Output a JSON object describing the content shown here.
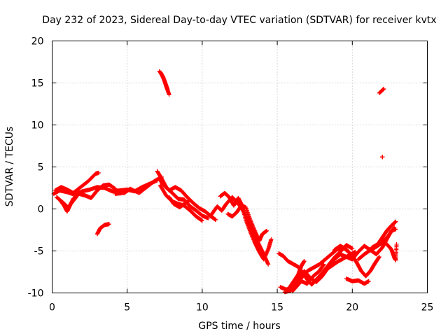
{
  "chart_data": {
    "type": "scatter",
    "title": "Day 232 of 2023, Sidereal Day-to-day VTEC variation (SDTVAR) for receiver kvtx",
    "xlabel": "GPS time / hours",
    "ylabel": "SDTVAR / TECUs",
    "xlim": [
      0,
      25
    ],
    "ylim": [
      -10,
      20
    ],
    "xticks": [
      0,
      5,
      10,
      15,
      20,
      25
    ],
    "yticks": [
      -10,
      -5,
      0,
      5,
      10,
      15,
      20
    ],
    "grid": true,
    "marker": "+",
    "color": "#ff0000",
    "series": [
      {
        "name": "tracks",
        "tracks": [
          [
            [
              0.1,
              1.8
            ],
            [
              0.5,
              2.2
            ],
            [
              1.0,
              2.0
            ],
            [
              1.5,
              1.7
            ],
            [
              2.0,
              2.1
            ],
            [
              2.5,
              2.3
            ],
            [
              3.0,
              2.6
            ],
            [
              3.5,
              2.5
            ],
            [
              4.0,
              2.1
            ],
            [
              4.5,
              2.2
            ],
            [
              5.0,
              2.3
            ],
            [
              5.5,
              2.1
            ],
            [
              6.0,
              2.6
            ],
            [
              6.5,
              3.0
            ],
            [
              7.0,
              3.4
            ]
          ],
          [
            [
              0.2,
              2.2
            ],
            [
              0.6,
              2.6
            ],
            [
              1.0,
              2.3
            ],
            [
              1.4,
              1.9
            ],
            [
              1.9,
              2.6
            ],
            [
              2.4,
              3.3
            ],
            [
              2.9,
              4.2
            ],
            [
              3.1,
              4.3
            ]
          ],
          [
            [
              0.3,
              1.4
            ],
            [
              0.7,
              0.8
            ],
            [
              1.1,
              0.1
            ],
            [
              1.4,
              1.2
            ],
            [
              1.8,
              1.8
            ],
            [
              2.2,
              1.6
            ],
            [
              2.6,
              1.3
            ],
            [
              3.0,
              2.2
            ],
            [
              3.4,
              2.8
            ],
            [
              3.8,
              2.9
            ],
            [
              4.2,
              2.4
            ]
          ],
          [
            [
              0.5,
              1.1
            ],
            [
              0.8,
              0.4
            ],
            [
              1.0,
              -0.3
            ],
            [
              1.2,
              0.5
            ],
            [
              1.6,
              1.4
            ]
          ],
          [
            [
              3.0,
              -3.0
            ],
            [
              3.2,
              -2.3
            ],
            [
              3.5,
              -1.9
            ],
            [
              3.8,
              -1.8
            ]
          ],
          [
            [
              4.2,
              1.8
            ],
            [
              4.8,
              1.9
            ],
            [
              5.2,
              2.4
            ],
            [
              5.8,
              1.9
            ],
            [
              6.3,
              2.6
            ],
            [
              6.8,
              3.3
            ],
            [
              7.3,
              3.8
            ]
          ],
          [
            [
              7.0,
              4.5
            ],
            [
              7.3,
              3.6
            ],
            [
              7.6,
              2.6
            ],
            [
              8.0,
              1.9
            ],
            [
              8.4,
              1.2
            ],
            [
              8.8,
              1.1
            ],
            [
              9.2,
              0.3
            ],
            [
              9.6,
              -0.2
            ],
            [
              10.0,
              -0.8
            ],
            [
              10.4,
              -1.1
            ]
          ],
          [
            [
              7.1,
              3.7
            ],
            [
              7.4,
              2.9
            ],
            [
              7.8,
              2.2
            ],
            [
              8.2,
              2.6
            ],
            [
              8.6,
              2.2
            ],
            [
              9.0,
              1.4
            ],
            [
              9.4,
              0.7
            ],
            [
              9.8,
              0.1
            ],
            [
              10.2,
              -0.3
            ],
            [
              10.6,
              -0.9
            ],
            [
              10.9,
              -1.3
            ]
          ],
          [
            [
              7.2,
              2.8
            ],
            [
              7.6,
              1.6
            ],
            [
              8.0,
              0.9
            ],
            [
              8.4,
              0.6
            ],
            [
              8.8,
              0.4
            ],
            [
              9.2,
              -0.2
            ],
            [
              9.6,
              -0.9
            ],
            [
              10.0,
              -1.4
            ]
          ],
          [
            [
              7.8,
              1.4
            ],
            [
              8.1,
              0.6
            ],
            [
              8.5,
              0.2
            ],
            [
              8.8,
              0.6
            ],
            [
              9.1,
              0.9
            ]
          ],
          [
            [
              7.15,
              16.4
            ],
            [
              7.4,
              15.7
            ],
            [
              7.6,
              14.6
            ],
            [
              7.8,
              13.6
            ]
          ],
          [
            [
              7.25,
              16.2
            ],
            [
              7.5,
              15.2
            ],
            [
              7.7,
              14.2
            ]
          ],
          [
            [
              10.6,
              -0.7
            ],
            [
              11.0,
              0.3
            ],
            [
              11.3,
              -0.2
            ],
            [
              11.6,
              0.6
            ],
            [
              12.0,
              1.4
            ],
            [
              12.3,
              0.8
            ],
            [
              12.6,
              0.2
            ],
            [
              12.9,
              -0.8
            ],
            [
              13.2,
              -2.0
            ],
            [
              13.5,
              -3.2
            ],
            [
              13.8,
              -4.3
            ],
            [
              14.1,
              -5.4
            ],
            [
              14.4,
              -6.6
            ]
          ],
          [
            [
              11.2,
              1.5
            ],
            [
              11.5,
              1.9
            ],
            [
              11.8,
              1.4
            ],
            [
              12.1,
              0.4
            ],
            [
              12.4,
              1.3
            ],
            [
              12.6,
              0.6
            ],
            [
              12.9,
              -1.3
            ],
            [
              13.2,
              -2.7
            ],
            [
              13.5,
              -4.0
            ],
            [
              13.8,
              -5.1
            ],
            [
              14.1,
              -6.0
            ],
            [
              14.4,
              -4.8
            ],
            [
              14.6,
              -3.6
            ]
          ],
          [
            [
              11.7,
              -0.6
            ],
            [
              12.0,
              -0.9
            ],
            [
              12.3,
              -0.4
            ],
            [
              12.6,
              0.4
            ],
            [
              12.9,
              0.2
            ],
            [
              13.2,
              -1.3
            ],
            [
              13.5,
              -2.6
            ],
            [
              13.8,
              -3.8
            ],
            [
              14.0,
              -3.0
            ],
            [
              14.3,
              -2.6
            ]
          ],
          [
            [
              15.1,
              -5.3
            ],
            [
              15.4,
              -5.6
            ],
            [
              15.7,
              -6.2
            ],
            [
              16.0,
              -6.5
            ],
            [
              16.4,
              -6.9
            ],
            [
              16.7,
              -7.6
            ],
            [
              17.0,
              -8.4
            ],
            [
              17.3,
              -9.0
            ],
            [
              17.6,
              -8.4
            ],
            [
              18.0,
              -7.6
            ],
            [
              18.4,
              -6.7
            ],
            [
              18.8,
              -5.8
            ],
            [
              19.2,
              -5.1
            ],
            [
              19.6,
              -4.3
            ],
            [
              20.0,
              -4.7
            ]
          ],
          [
            [
              15.2,
              -9.3
            ],
            [
              15.6,
              -9.6
            ],
            [
              16.0,
              -9.4
            ],
            [
              16.4,
              -8.4
            ],
            [
              16.8,
              -7.4
            ],
            [
              17.2,
              -8.2
            ],
            [
              17.6,
              -8.7
            ],
            [
              18.0,
              -8.0
            ],
            [
              18.4,
              -7.0
            ],
            [
              18.8,
              -6.0
            ],
            [
              19.2,
              -5.4
            ],
            [
              19.6,
              -5.7
            ],
            [
              20.0,
              -6.0
            ],
            [
              20.4,
              -5.1
            ],
            [
              20.8,
              -4.4
            ],
            [
              21.2,
              -4.9
            ],
            [
              21.6,
              -5.4
            ],
            [
              22.0,
              -4.6
            ],
            [
              22.3,
              -3.6
            ],
            [
              22.6,
              -2.6
            ],
            [
              22.9,
              -2.4
            ]
          ],
          [
            [
              15.5,
              -9.9
            ],
            [
              15.9,
              -9.7
            ],
            [
              16.3,
              -9.0
            ],
            [
              16.7,
              -8.0
            ],
            [
              17.0,
              -7.4
            ],
            [
              17.4,
              -7.0
            ],
            [
              17.8,
              -6.6
            ],
            [
              18.2,
              -6.0
            ],
            [
              18.6,
              -5.4
            ],
            [
              19.0,
              -4.8
            ],
            [
              19.4,
              -4.6
            ],
            [
              19.8,
              -5.2
            ]
          ],
          [
            [
              15.8,
              -9.4
            ],
            [
              16.1,
              -8.6
            ],
            [
              16.4,
              -7.8
            ],
            [
              16.6,
              -6.8
            ],
            [
              16.8,
              -6.2
            ]
          ],
          [
            [
              16.0,
              -9.8
            ],
            [
              16.3,
              -9.2
            ],
            [
              16.6,
              -8.6
            ],
            [
              17.0,
              -8.9
            ],
            [
              17.4,
              -8.0
            ],
            [
              17.8,
              -7.4
            ],
            [
              18.1,
              -6.6
            ]
          ],
          [
            [
              18.2,
              -7.3
            ],
            [
              18.6,
              -6.8
            ],
            [
              19.0,
              -6.3
            ],
            [
              19.4,
              -5.9
            ],
            [
              19.8,
              -5.5
            ],
            [
              20.2,
              -5.1
            ]
          ],
          [
            [
              18.8,
              -4.9
            ],
            [
              19.2,
              -4.4
            ],
            [
              19.6,
              -4.8
            ],
            [
              20.0,
              -5.6
            ],
            [
              20.3,
              -6.4
            ],
            [
              20.6,
              -7.4
            ],
            [
              20.9,
              -8.0
            ],
            [
              21.2,
              -7.4
            ],
            [
              21.5,
              -6.5
            ],
            [
              21.8,
              -5.7
            ]
          ],
          [
            [
              19.6,
              -8.3
            ],
            [
              20.0,
              -8.6
            ],
            [
              20.4,
              -8.5
            ],
            [
              20.8,
              -8.9
            ],
            [
              21.1,
              -8.6
            ]
          ],
          [
            [
              20.4,
              -6.0
            ],
            [
              20.8,
              -5.4
            ],
            [
              21.2,
              -4.9
            ],
            [
              21.6,
              -4.5
            ],
            [
              22.0,
              -4.0
            ],
            [
              22.4,
              -3.2
            ],
            [
              22.8,
              -2.2
            ]
          ],
          [
            [
              21.3,
              -4.6
            ],
            [
              21.7,
              -4.2
            ],
            [
              22.0,
              -3.4
            ],
            [
              22.3,
              -2.6
            ],
            [
              22.6,
              -2.0
            ],
            [
              22.9,
              -1.5
            ]
          ],
          [
            [
              22.3,
              -4.2
            ],
            [
              22.6,
              -4.8
            ],
            [
              22.8,
              -5.8
            ],
            [
              22.9,
              -6.1
            ],
            [
              22.95,
              -4.2
            ]
          ],
          [
            [
              21.8,
              13.8
            ],
            [
              22.1,
              14.3
            ]
          ],
          [
            [
              22.0,
              6.2
            ],
            [
              22.0,
              6.2
            ]
          ]
        ]
      }
    ]
  }
}
